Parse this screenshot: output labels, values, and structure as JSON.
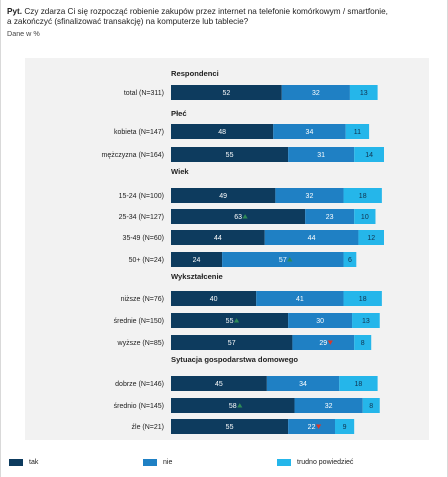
{
  "header": {
    "prefix": "Pyt.",
    "question_line1": "Czy zdarza Ci się rozpocząć robienie zakupów przez internet na telefonie komórkowym / smartfonie,",
    "question_line2": "a zakończyć (sfinalizować transakcję) na komputerze lub tablecie?",
    "note": "Dane w %"
  },
  "colors": {
    "tak": "#0d3b5e",
    "nie": "#1f80c4",
    "trudno": "#25b6ea",
    "up_marker": "#2e8b57",
    "down_marker": "#d9372a",
    "panel_bg": "#f2f2f2"
  },
  "chart_data": {
    "type": "bar",
    "orientation": "horizontal-stacked-100",
    "series_names": [
      "tak",
      "nie",
      "trudno powiedzieć"
    ],
    "groups": [
      {
        "title": "Respondenci",
        "rows": [
          {
            "label": "total (N=311)",
            "values": [
              52,
              32,
              13
            ]
          }
        ]
      },
      {
        "title": "Płeć",
        "rows": [
          {
            "label": "kobieta (N=147)",
            "values": [
              48,
              34,
              11
            ]
          },
          {
            "label": "mężczyzna (N=164)",
            "values": [
              55,
              31,
              14
            ]
          }
        ]
      },
      {
        "title": "Wiek",
        "rows": [
          {
            "label": "15-24 (N=100)",
            "values": [
              49,
              32,
              18
            ]
          },
          {
            "label": "25-34 (N=127)",
            "values": [
              63,
              23,
              10
            ],
            "markers": [
              "up",
              null,
              null
            ]
          },
          {
            "label": "35-49 (N=60)",
            "values": [
              44,
              44,
              12
            ]
          },
          {
            "label": "50+ (N=24)",
            "values": [
              24,
              57,
              6
            ],
            "markers": [
              null,
              "up",
              null
            ]
          }
        ]
      },
      {
        "title": "Wykształcenie",
        "rows": [
          {
            "label": "niższe (N=76)",
            "values": [
              40,
              41,
              18
            ]
          },
          {
            "label": "średnie (N=150)",
            "values": [
              55,
              30,
              13
            ],
            "markers": [
              "up",
              null,
              null
            ]
          },
          {
            "label": "wyższe (N=85)",
            "values": [
              57,
              29,
              8
            ],
            "markers": [
              null,
              "down",
              null
            ]
          }
        ]
      },
      {
        "title": "Sytuacja gospodarstwa domowego",
        "rows": [
          {
            "label": "dobrze (N=146)",
            "values": [
              45,
              34,
              18
            ]
          },
          {
            "label": "średnio (N=145)",
            "values": [
              58,
              32,
              8
            ],
            "markers": [
              "up",
              null,
              null
            ]
          },
          {
            "label": "źle (N=21)",
            "values": [
              55,
              22,
              9
            ],
            "markers": [
              null,
              "down",
              null
            ]
          }
        ]
      }
    ]
  },
  "legend": [
    {
      "label": "tak",
      "color": "#0d3b5e"
    },
    {
      "label": "nie",
      "color": "#1f80c4"
    },
    {
      "label": "trudno powiedzieć",
      "color": "#25b6ea"
    }
  ]
}
